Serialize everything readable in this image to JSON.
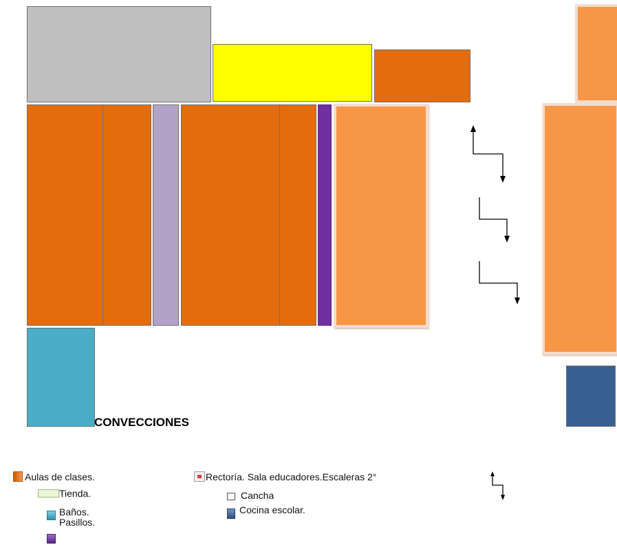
{
  "map": {
    "label_convecciones": "CONVECCIONES",
    "colors": {
      "cancha": "#c0c0c0",
      "tienda": "#ffff00",
      "aulas": "#e46c0a",
      "rectoria": "#f79646",
      "pasillo_claro": "#b3a2c7",
      "pasillo_oscuro": "#7030a0",
      "banos": "#4bacc6",
      "cocina": "#376092"
    }
  },
  "legend": {
    "aulas": "Aulas de clases.",
    "tienda": "Tienda.",
    "banos": "Baños.",
    "pasillos": "Pasillos.",
    "rectoria": "Rectoría. Sala educadores.Escaleras 2°",
    "cancha": "Cancha",
    "cocina": "Cocina escolar.",
    "stairs_icon": "stairs-arrow-icon"
  }
}
